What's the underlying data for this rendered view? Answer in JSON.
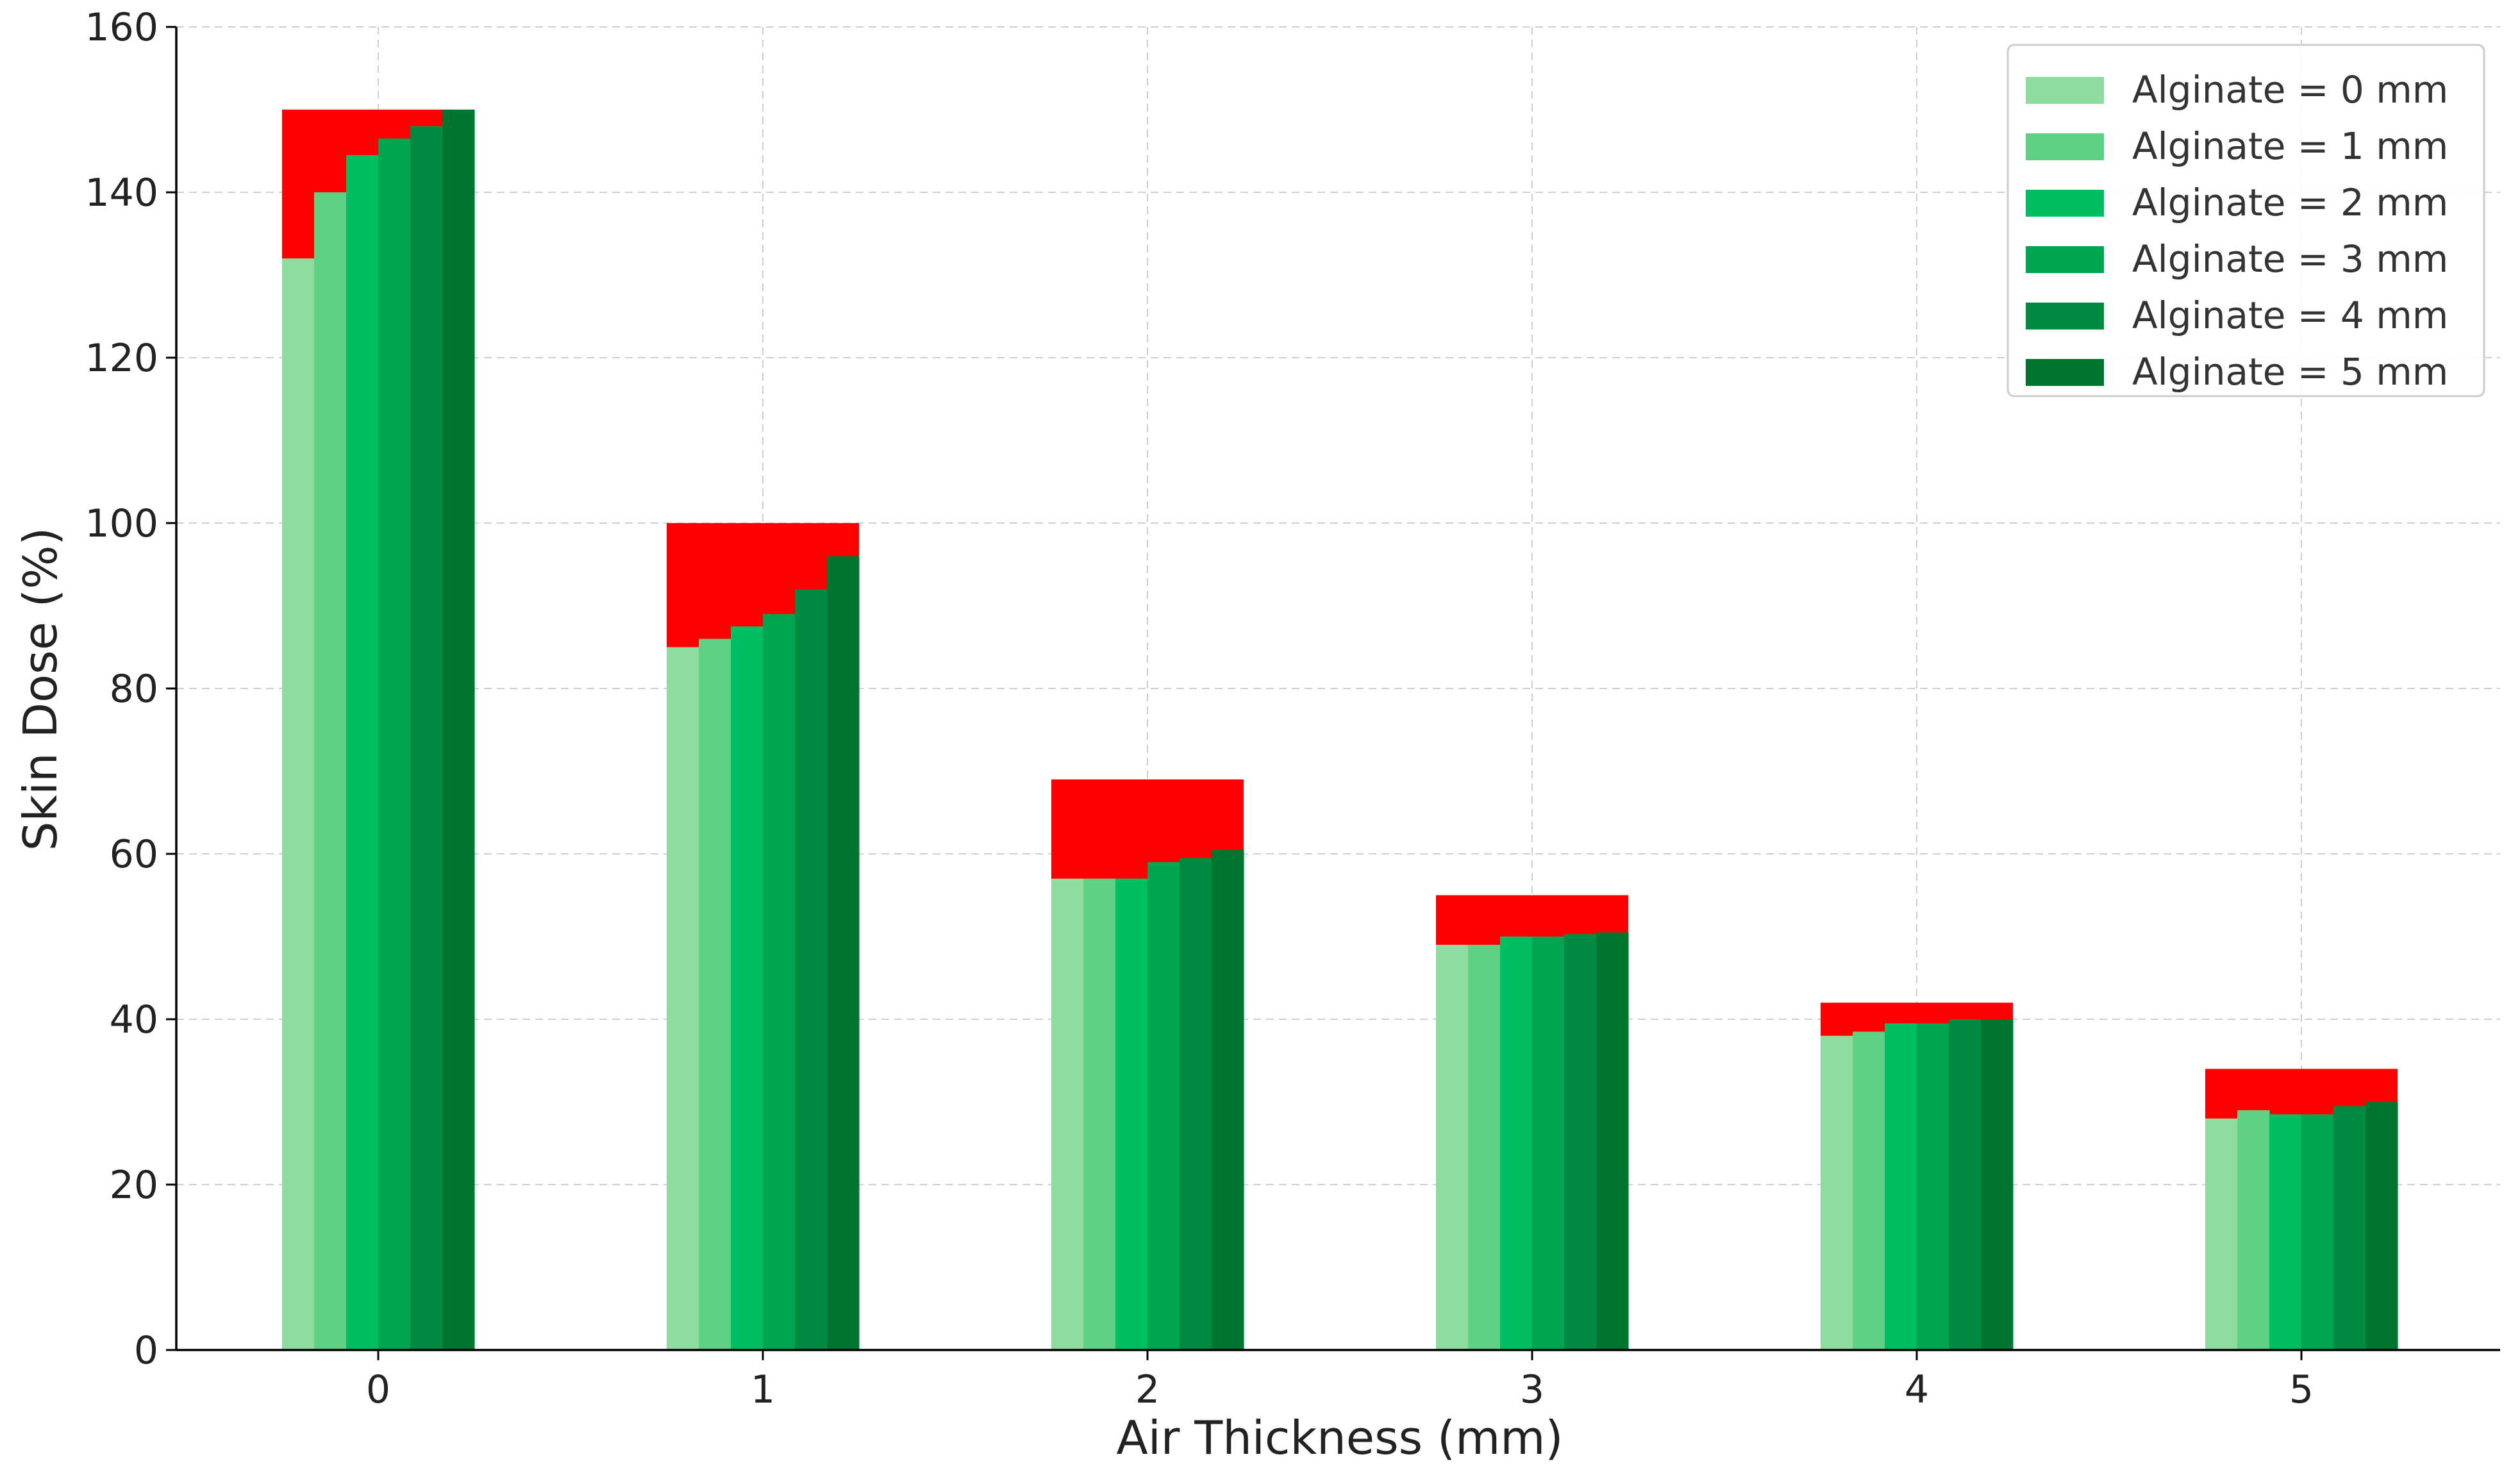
{
  "chart_data": {
    "type": "bar",
    "title": "",
    "xlabel": "Air Thickness (mm)",
    "ylabel": "Skin Dose (%)",
    "ylim": [
      0,
      160
    ],
    "yticks": [
      "0",
      "20",
      "40",
      "60",
      "80",
      "100",
      "120",
      "140",
      "160"
    ],
    "categories": [
      "0",
      "1",
      "2",
      "3",
      "4",
      "5"
    ],
    "grid": true,
    "legend_position": "top-right",
    "cap_color": "#ff0000",
    "cap_values": [
      150,
      100,
      69,
      55,
      42,
      34
    ],
    "series": [
      {
        "name": "Alginate = 0 mm",
        "color": "#8edd9e",
        "values": [
          132,
          85,
          57,
          49,
          38,
          28
        ]
      },
      {
        "name": "Alginate = 1 mm",
        "color": "#5fd184",
        "values": [
          140,
          86,
          57,
          49,
          38.5,
          29
        ]
      },
      {
        "name": "Alginate = 2 mm",
        "color": "#00bf63",
        "values": [
          144.5,
          87.5,
          57,
          50,
          39.5,
          28.5
        ]
      },
      {
        "name": "Alginate = 3 mm",
        "color": "#00a651",
        "values": [
          146.5,
          89,
          59,
          50,
          39.5,
          28.5
        ]
      },
      {
        "name": "Alginate = 4 mm",
        "color": "#008b42",
        "values": [
          148,
          92,
          59.5,
          50.3,
          40,
          29.5
        ]
      },
      {
        "name": "Alginate = 5 mm",
        "color": "#007530",
        "values": [
          150,
          96,
          60.5,
          50.5,
          40,
          30
        ]
      }
    ]
  }
}
